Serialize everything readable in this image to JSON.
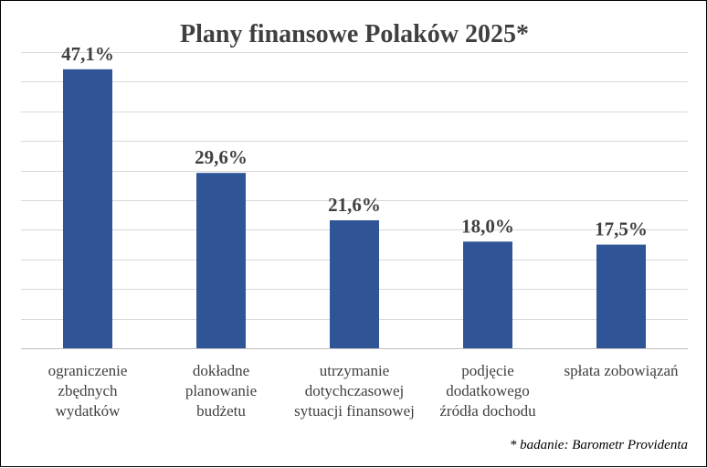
{
  "chart_data": {
    "type": "bar",
    "title": "Plany finansowe Polaków 2025*",
    "categories": [
      [
        "ograniczenie",
        "zbędnych",
        "wydatków"
      ],
      [
        "dokładne",
        "planowanie",
        "budżetu"
      ],
      [
        "utrzymanie",
        "dotychczasowej",
        "sytuacji finansowej"
      ],
      [
        "podjęcie",
        "dodatkowego",
        "źródła dochodu"
      ],
      [
        "spłata zobowiązań"
      ]
    ],
    "values": [
      47.1,
      29.6,
      21.6,
      18.0,
      17.5
    ],
    "data_labels": [
      "47,1%",
      "29,6%",
      "21,6%",
      "18,0%",
      "17,5%"
    ],
    "ylim": [
      0,
      50
    ],
    "grid": true,
    "bar_color": "#2F5597",
    "grid_color": "#D9D9D9",
    "text_color": "#404040",
    "footnote": "* badanie: Barometr Providenta"
  }
}
